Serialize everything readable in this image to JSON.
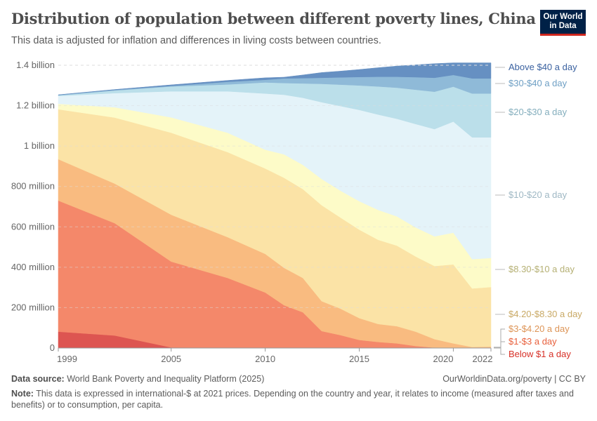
{
  "header": {
    "title": "Distribution of population between different poverty lines, China",
    "subtitle": "This data is adjusted for inflation and differences in living costs between countries.",
    "logo_line1": "Our World",
    "logo_line2": "in Data"
  },
  "chart_data": {
    "type": "area",
    "stacked": true,
    "x": [
      1999,
      2002,
      2005,
      2008,
      2010,
      2011,
      2012,
      2013,
      2014,
      2015,
      2016,
      2017,
      2018,
      2019,
      2020,
      2021,
      2022
    ],
    "xticks": [
      1999,
      2005,
      2010,
      2015,
      2020,
      2022
    ],
    "yticks": [
      {
        "v": 0,
        "label": "0"
      },
      {
        "v": 200,
        "label": "200 million"
      },
      {
        "v": 400,
        "label": "400 million"
      },
      {
        "v": 600,
        "label": "600 million"
      },
      {
        "v": 800,
        "label": "800 million"
      },
      {
        "v": 1000,
        "label": "1 billion"
      },
      {
        "v": 1200,
        "label": "1.2 billion"
      },
      {
        "v": 1400,
        "label": "1.4 billion"
      }
    ],
    "yunit": "million",
    "ylim": [
      0,
      1400
    ],
    "grid": "horizontal-dashed",
    "legend": "right, inline labels",
    "series": [
      {
        "name": "Below $1 a day",
        "color": "#dd5551",
        "label_color": "#d73027",
        "values": [
          81,
          62,
          3,
          2,
          1,
          1,
          1,
          1,
          1,
          1,
          1,
          1,
          1,
          0,
          0,
          0,
          0
        ]
      },
      {
        "name": "$1-$3 a day",
        "color": "#f4886a",
        "label_color": "#e8603c",
        "values": [
          649,
          556,
          425,
          345,
          274,
          211,
          176,
          83,
          63,
          39,
          29,
          22,
          9,
          2,
          1,
          1,
          1
        ]
      },
      {
        "name": "$3-$4.20 a day",
        "color": "#f9bb80",
        "label_color": "#dd9456",
        "values": [
          205,
          196,
          232,
          202,
          191,
          185,
          170,
          148,
          131,
          108,
          89,
          85,
          71,
          42,
          22,
          4,
          6
        ]
      },
      {
        "name": "$4.20-$8.30 a day",
        "color": "#fbe3a6",
        "label_color": "#c9a965",
        "values": [
          247,
          327,
          406,
          421,
          423,
          446,
          440,
          475,
          451,
          438,
          417,
          399,
          372,
          362,
          391,
          290,
          295
        ]
      },
      {
        "name": "$8.30-$10 a day",
        "color": "#fdfbc8",
        "label_color": "#b5b074",
        "values": [
          27,
          51,
          76,
          96,
          93,
          116,
          120,
          130,
          133,
          141,
          148,
          145,
          144,
          147,
          157,
          145,
          144
        ]
      },
      {
        "name": "$10-$20 a day",
        "color": "#e4f3f9",
        "label_color": "#9fb8c4",
        "values": [
          39,
          70,
          129,
          205,
          278,
          295,
          332,
          380,
          419,
          452,
          472,
          483,
          512,
          531,
          550,
          603,
          597
        ]
      },
      {
        "name": "$20-$30 a day",
        "color": "#bbdfea",
        "label_color": "#84aebd",
        "values": [
          3,
          13,
          24,
          34,
          55,
          58,
          71,
          91,
          106,
          121,
          139,
          154,
          170,
          185,
          173,
          217,
          217
        ]
      },
      {
        "name": "$30-$40 a day",
        "color": "#8fbad8",
        "label_color": "#6e9fc4",
        "values": [
          2,
          3,
          3,
          13,
          13,
          23,
          26,
          30,
          36,
          42,
          48,
          54,
          62,
          69,
          58,
          75,
          75
        ]
      },
      {
        "name": "Above $40 a day",
        "color": "#6690c2",
        "label_color": "#3b62a0",
        "values": [
          1,
          2,
          5,
          7,
          10,
          6,
          16,
          26,
          31,
          37,
          45,
          53,
          61,
          70,
          60,
          77,
          77
        ]
      }
    ]
  },
  "footer": {
    "source_label": "Data source:",
    "source": " World Bank Poverty and Inequality Platform (2025)",
    "url": "OurWorldinData.org/poverty | CC BY",
    "note_label": "Note:",
    "note": " This data is expressed in international-$ at 2021 prices. Depending on the country and year, it relates to income (measured after taxes and benefits) or to consumption, per capita."
  }
}
